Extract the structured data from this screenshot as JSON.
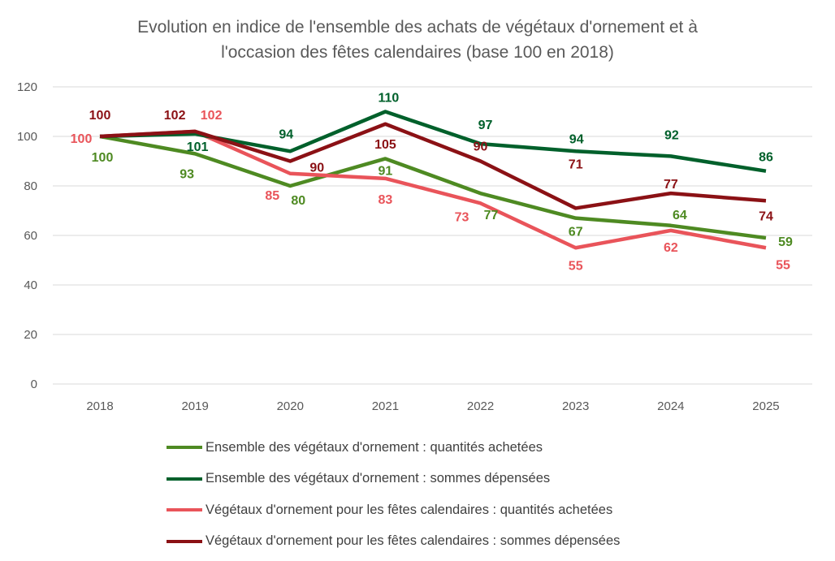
{
  "chart_data": {
    "type": "line",
    "title": "Evolution en indice de l'ensemble des achats de végétaux d'ornement et à l'occasion des fêtes calendaires (base 100 en 2018)",
    "title_lines": [
      "Evolution en indice de l'ensemble des achats de végétaux d'ornement et à",
      "l'occasion des fêtes calendaires (base 100 en 2018)"
    ],
    "categories": [
      "2018",
      "2019",
      "2020",
      "2021",
      "2022",
      "2023",
      "2024",
      "2025"
    ],
    "ylim": [
      0,
      120
    ],
    "yticks": [
      0,
      20,
      40,
      60,
      80,
      100,
      120
    ],
    "grid": true,
    "legend_position": "bottom",
    "series": [
      {
        "name": "Ensemble des végétaux d'ornement : quantités achetées",
        "color": "#4e8a22",
        "values": [
          100,
          93,
          80,
          91,
          77,
          67,
          64,
          59
        ],
        "labels": [
          "100",
          "93",
          "80",
          "91",
          "77",
          "67",
          "64",
          "59"
        ]
      },
      {
        "name": "Ensemble des végétaux d'ornement : sommes dépensées",
        "color": "#00602b",
        "values": [
          100,
          101,
          94,
          110,
          97,
          94,
          92,
          86
        ],
        "labels": [
          "",
          "101",
          "94",
          "110",
          "97",
          "94",
          "92",
          "86"
        ]
      },
      {
        "name": "Végétaux d'ornement pour les fêtes calendaires : quantités achetées",
        "color": "#e9545a",
        "values": [
          100,
          102,
          85,
          83,
          73,
          55,
          62,
          55
        ],
        "labels": [
          "100",
          "102",
          "85",
          "83",
          "73",
          "55",
          "62",
          "55"
        ]
      },
      {
        "name": "Végétaux d'ornement pour les fêtes calendaires : sommes dépensées",
        "color": "#8b1115",
        "values": [
          100,
          102,
          90,
          105,
          90,
          71,
          77,
          74
        ],
        "labels": [
          "100",
          "102",
          "90",
          "105",
          "90",
          "71",
          "77",
          "74"
        ]
      }
    ]
  }
}
